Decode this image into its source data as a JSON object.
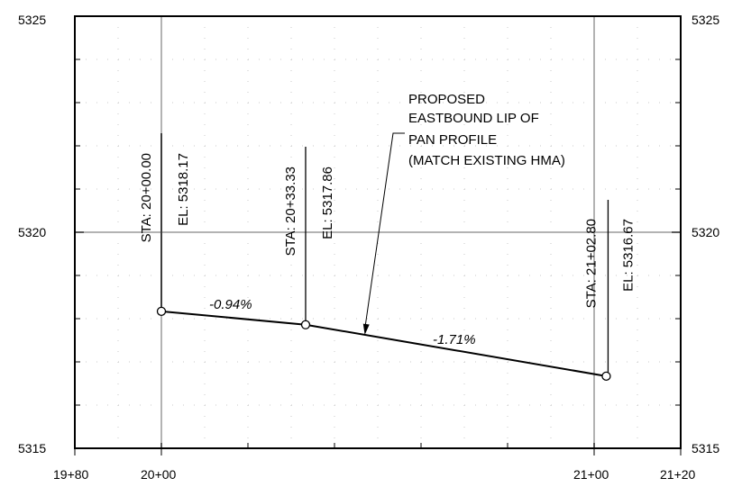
{
  "chart_data": {
    "type": "line",
    "x_axis": {
      "range_ft": [
        1980,
        2120
      ],
      "tick_labels": [
        "19+80",
        "20+00",
        "21+00",
        "21+20"
      ],
      "tick_values_ft": [
        1980,
        2000,
        2100,
        2120
      ]
    },
    "y_axis": {
      "range": [
        5315,
        5325
      ],
      "left_tick_labels": [
        "5325",
        "5320",
        "5315"
      ],
      "right_tick_labels": [
        "5325",
        "5320",
        "5315"
      ],
      "tick_values": [
        5325,
        5320,
        5315
      ]
    },
    "series": [
      {
        "points": [
          {
            "x_ft": 2000.0,
            "y": 5318.17,
            "sta_label": "STA: 20+00.00",
            "el_label": "EL: 5318.17"
          },
          {
            "x_ft": 2033.33,
            "y": 5317.86,
            "sta_label": "STA: 20+33.33",
            "el_label": "EL: 5317.86"
          },
          {
            "x_ft": 2102.8,
            "y": 5316.67,
            "sta_label": "STA: 21+02.80",
            "el_label": "EL: 5316.67"
          }
        ]
      }
    ],
    "grades": [
      {
        "text": "-0.94%",
        "from_index": 0,
        "to_index": 1
      },
      {
        "text": "-1.71%",
        "from_index": 1,
        "to_index": 2
      }
    ],
    "annotation": {
      "lines": [
        "PROPOSED",
        "EASTBOUND LIP OF",
        "PAN PROFILE",
        "(MATCH EXISTING HMA)"
      ],
      "points_to_x_ft": 2047
    },
    "colors": {
      "major_grid": "#b3b3b3",
      "minor_grid": "#c8c8c8",
      "profile": "#000000"
    }
  }
}
